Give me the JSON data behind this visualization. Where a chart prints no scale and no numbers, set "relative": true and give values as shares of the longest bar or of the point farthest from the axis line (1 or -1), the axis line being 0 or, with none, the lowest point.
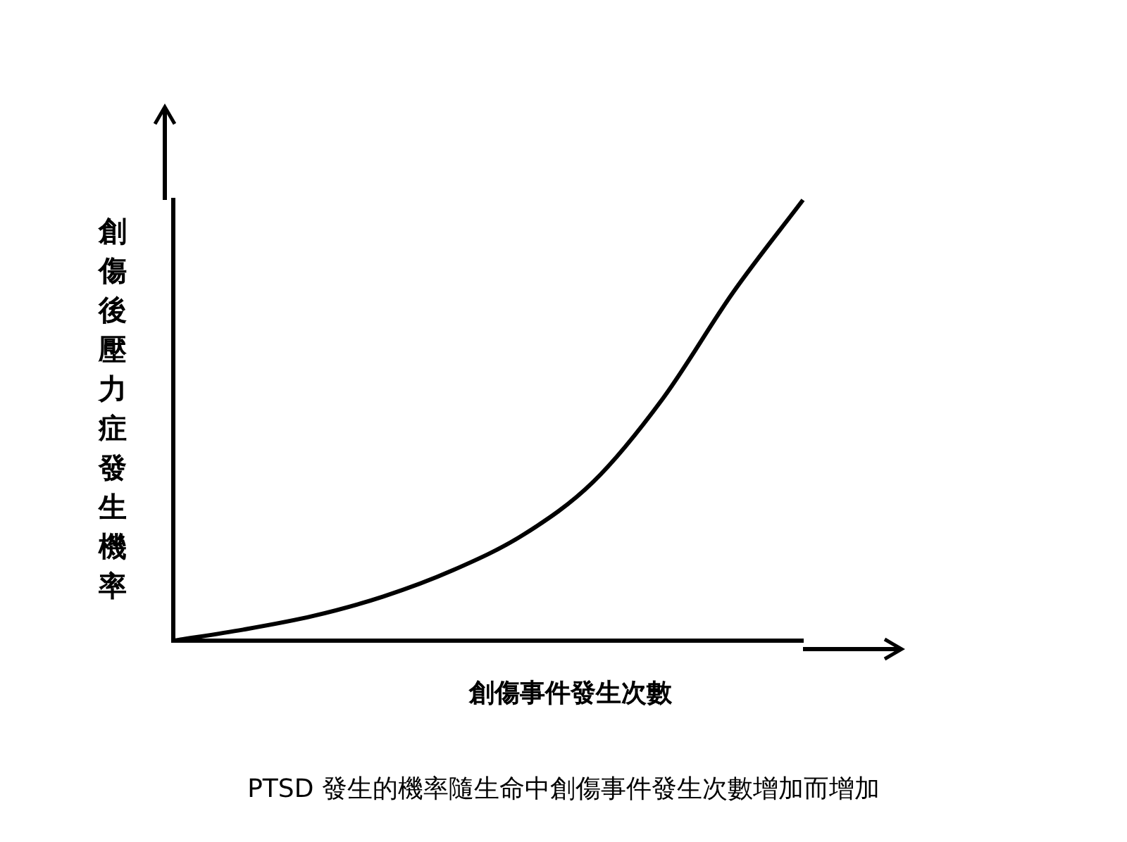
{
  "chart_data": {
    "type": "line",
    "relative": true,
    "xlabel": "創傷事件發生次數",
    "ylabel": "創傷後壓力症發生機率",
    "annotations": [
      "PTSD 發生的機率隨生命中創傷事件發生次數增加而增加"
    ],
    "categories": [
      null,
      null,
      null,
      null,
      null,
      null,
      null,
      null,
      null,
      null
    ],
    "series": [
      {
        "color": "#000000",
        "values": [
          0,
          0.025,
          0.056,
          0.1,
          0.16,
          0.24,
          0.36,
          0.55,
          0.79,
          1
        ]
      }
    ]
  }
}
